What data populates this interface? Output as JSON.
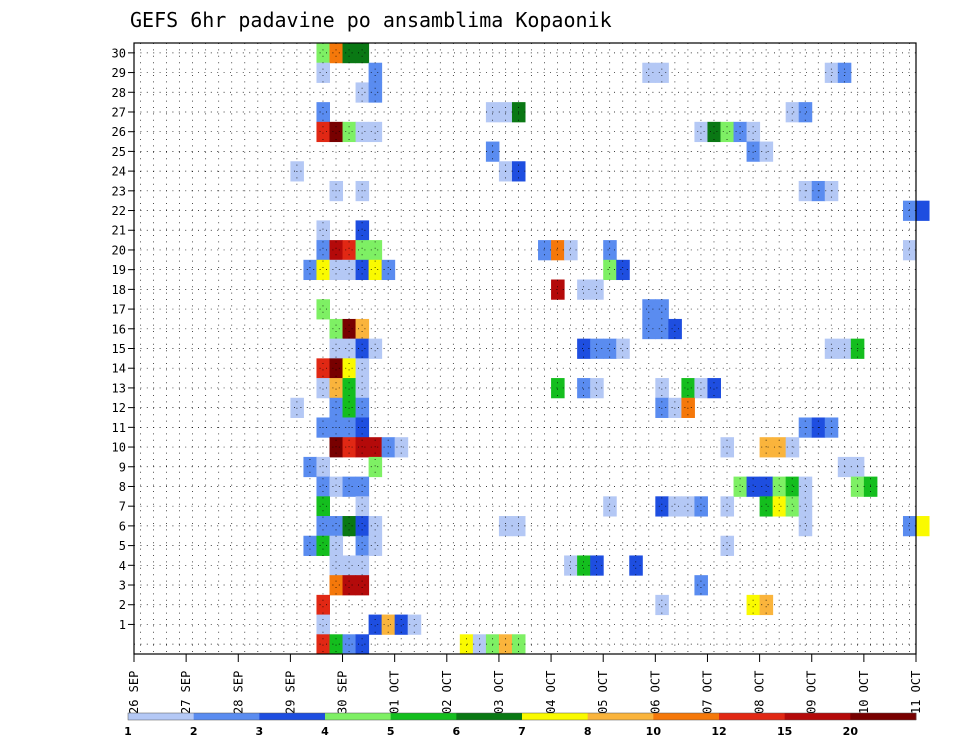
{
  "chart_data": {
    "type": "heatmap",
    "title": "GEFS 6hr padavine po ansamblima Kopaonik",
    "x_tick_labels": [
      "26 SEP",
      "27 SEP",
      "28 SEP",
      "29 SEP",
      "30 SEP",
      "01 OCT",
      "02 OCT",
      "03 OCT",
      "04 OCT",
      "05 OCT",
      "06 OCT",
      "07 OCT",
      "08 OCT",
      "09 OCT",
      "10 OCT",
      "11 OCT"
    ],
    "x_range": [
      "26 SEP 00Z",
      "11 OCT 00Z"
    ],
    "x_step_hours": 6,
    "y_range": [
      0,
      30
    ],
    "y_tick_labels": [
      "1",
      "2",
      "3",
      "4",
      "5",
      "6",
      "7",
      "8",
      "9",
      "10",
      "11",
      "12",
      "13",
      "14",
      "15",
      "16",
      "17",
      "18",
      "19",
      "20",
      "21",
      "22",
      "23",
      "24",
      "25",
      "26",
      "27",
      "28",
      "29",
      "30"
    ],
    "grid": true,
    "colorbar": {
      "position": "bottom",
      "tick_labels": [
        "1",
        "2",
        "3",
        "4",
        "5",
        "6",
        "7",
        "8",
        "10",
        "12",
        "15",
        "20"
      ],
      "colors": [
        "#b4c8f5",
        "#5a8cf0",
        "#1e4ee0",
        "#7ef064",
        "#14be1e",
        "#0a7814",
        "#fafa00",
        "#fab43c",
        "#f5780a",
        "#e12814",
        "#b40a0a",
        "#780000"
      ]
    },
    "cells": [
      {
        "member": 30,
        "step": 14,
        "level": 4
      },
      {
        "member": 30,
        "step": 15,
        "level": 9
      },
      {
        "member": 30,
        "step": 16,
        "level": 6
      },
      {
        "member": 30,
        "step": 17,
        "level": 6
      },
      {
        "member": 29,
        "step": 14,
        "level": 1
      },
      {
        "member": 29,
        "step": 18,
        "level": 2
      },
      {
        "member": 29,
        "step": 39,
        "level": 1
      },
      {
        "member": 29,
        "step": 40,
        "level": 1
      },
      {
        "member": 29,
        "step": 53,
        "level": 1
      },
      {
        "member": 29,
        "step": 54,
        "level": 2
      },
      {
        "member": 28,
        "step": 17,
        "level": 1
      },
      {
        "member": 28,
        "step": 18,
        "level": 2
      },
      {
        "member": 27,
        "step": 14,
        "level": 2
      },
      {
        "member": 27,
        "step": 27,
        "level": 1
      },
      {
        "member": 27,
        "step": 28,
        "level": 1
      },
      {
        "member": 27,
        "step": 29,
        "level": 6
      },
      {
        "member": 27,
        "step": 50,
        "level": 1
      },
      {
        "member": 27,
        "step": 51,
        "level": 2
      },
      {
        "member": 26,
        "step": 14,
        "level": 10
      },
      {
        "member": 26,
        "step": 15,
        "level": 12
      },
      {
        "member": 26,
        "step": 16,
        "level": 4
      },
      {
        "member": 26,
        "step": 17,
        "level": 1
      },
      {
        "member": 26,
        "step": 18,
        "level": 1
      },
      {
        "member": 26,
        "step": 43,
        "level": 1
      },
      {
        "member": 26,
        "step": 44,
        "level": 6
      },
      {
        "member": 26,
        "step": 45,
        "level": 4
      },
      {
        "member": 26,
        "step": 46,
        "level": 2
      },
      {
        "member": 26,
        "step": 47,
        "level": 1
      },
      {
        "member": 25,
        "step": 27,
        "level": 2
      },
      {
        "member": 25,
        "step": 47,
        "level": 2
      },
      {
        "member": 25,
        "step": 48,
        "level": 1
      },
      {
        "member": 24,
        "step": 12,
        "level": 1
      },
      {
        "member": 24,
        "step": 28,
        "level": 1
      },
      {
        "member": 24,
        "step": 29,
        "level": 3
      },
      {
        "member": 23,
        "step": 15,
        "level": 1
      },
      {
        "member": 23,
        "step": 17,
        "level": 1
      },
      {
        "member": 23,
        "step": 51,
        "level": 1
      },
      {
        "member": 23,
        "step": 52,
        "level": 2
      },
      {
        "member": 23,
        "step": 53,
        "level": 1
      },
      {
        "member": 22,
        "step": 59,
        "level": 2
      },
      {
        "member": 22,
        "step": 60,
        "level": 3
      },
      {
        "member": 21,
        "step": 14,
        "level": 1
      },
      {
        "member": 21,
        "step": 17,
        "level": 3
      },
      {
        "member": 20,
        "step": 14,
        "level": 2
      },
      {
        "member": 20,
        "step": 15,
        "level": 11
      },
      {
        "member": 20,
        "step": 16,
        "level": 10
      },
      {
        "member": 20,
        "step": 17,
        "level": 4
      },
      {
        "member": 20,
        "step": 18,
        "level": 4
      },
      {
        "member": 20,
        "step": 31,
        "level": 2
      },
      {
        "member": 20,
        "step": 32,
        "level": 9
      },
      {
        "member": 20,
        "step": 33,
        "level": 1
      },
      {
        "member": 20,
        "step": 36,
        "level": 2
      },
      {
        "member": 20,
        "step": 59,
        "level": 1
      },
      {
        "member": 19,
        "step": 13,
        "level": 2
      },
      {
        "member": 19,
        "step": 14,
        "level": 7
      },
      {
        "member": 19,
        "step": 15,
        "level": 1
      },
      {
        "member": 19,
        "step": 16,
        "level": 1
      },
      {
        "member": 19,
        "step": 17,
        "level": 3
      },
      {
        "member": 19,
        "step": 18,
        "level": 7
      },
      {
        "member": 19,
        "step": 19,
        "level": 2
      },
      {
        "member": 19,
        "step": 36,
        "level": 4
      },
      {
        "member": 19,
        "step": 37,
        "level": 3
      },
      {
        "member": 18,
        "step": 32,
        "level": 11
      },
      {
        "member": 18,
        "step": 34,
        "level": 1
      },
      {
        "member": 18,
        "step": 35,
        "level": 1
      },
      {
        "member": 17,
        "step": 14,
        "level": 4
      },
      {
        "member": 17,
        "step": 39,
        "level": 2
      },
      {
        "member": 17,
        "step": 40,
        "level": 2
      },
      {
        "member": 16,
        "step": 15,
        "level": 4
      },
      {
        "member": 16,
        "step": 16,
        "level": 12
      },
      {
        "member": 16,
        "step": 17,
        "level": 8
      },
      {
        "member": 16,
        "step": 39,
        "level": 2
      },
      {
        "member": 16,
        "step": 40,
        "level": 2
      },
      {
        "member": 16,
        "step": 41,
        "level": 3
      },
      {
        "member": 15,
        "step": 15,
        "level": 1
      },
      {
        "member": 15,
        "step": 16,
        "level": 1
      },
      {
        "member": 15,
        "step": 17,
        "level": 3
      },
      {
        "member": 15,
        "step": 18,
        "level": 1
      },
      {
        "member": 15,
        "step": 34,
        "level": 3
      },
      {
        "member": 15,
        "step": 35,
        "level": 2
      },
      {
        "member": 15,
        "step": 36,
        "level": 2
      },
      {
        "member": 15,
        "step": 37,
        "level": 1
      },
      {
        "member": 15,
        "step": 53,
        "level": 1
      },
      {
        "member": 15,
        "step": 54,
        "level": 1
      },
      {
        "member": 15,
        "step": 55,
        "level": 5
      },
      {
        "member": 14,
        "step": 14,
        "level": 10
      },
      {
        "member": 14,
        "step": 15,
        "level": 12
      },
      {
        "member": 14,
        "step": 16,
        "level": 7
      },
      {
        "member": 14,
        "step": 17,
        "level": 1
      },
      {
        "member": 13,
        "step": 14,
        "level": 1
      },
      {
        "member": 13,
        "step": 15,
        "level": 8
      },
      {
        "member": 13,
        "step": 16,
        "level": 5
      },
      {
        "member": 13,
        "step": 17,
        "level": 1
      },
      {
        "member": 13,
        "step": 32,
        "level": 5
      },
      {
        "member": 13,
        "step": 34,
        "level": 2
      },
      {
        "member": 13,
        "step": 35,
        "level": 1
      },
      {
        "member": 13,
        "step": 40,
        "level": 1
      },
      {
        "member": 13,
        "step": 42,
        "level": 5
      },
      {
        "member": 13,
        "step": 43,
        "level": 1
      },
      {
        "member": 13,
        "step": 44,
        "level": 3
      },
      {
        "member": 12,
        "step": 12,
        "level": 1
      },
      {
        "member": 12,
        "step": 15,
        "level": 2
      },
      {
        "member": 12,
        "step": 16,
        "level": 5
      },
      {
        "member": 12,
        "step": 17,
        "level": 2
      },
      {
        "member": 12,
        "step": 40,
        "level": 2
      },
      {
        "member": 12,
        "step": 41,
        "level": 1
      },
      {
        "member": 12,
        "step": 42,
        "level": 9
      },
      {
        "member": 11,
        "step": 14,
        "level": 2
      },
      {
        "member": 11,
        "step": 15,
        "level": 2
      },
      {
        "member": 11,
        "step": 16,
        "level": 2
      },
      {
        "member": 11,
        "step": 17,
        "level": 3
      },
      {
        "member": 11,
        "step": 51,
        "level": 2
      },
      {
        "member": 11,
        "step": 52,
        "level": 3
      },
      {
        "member": 11,
        "step": 53,
        "level": 2
      },
      {
        "member": 10,
        "step": 15,
        "level": 12
      },
      {
        "member": 10,
        "step": 16,
        "level": 10
      },
      {
        "member": 10,
        "step": 17,
        "level": 11
      },
      {
        "member": 10,
        "step": 18,
        "level": 11
      },
      {
        "member": 10,
        "step": 19,
        "level": 2
      },
      {
        "member": 10,
        "step": 20,
        "level": 1
      },
      {
        "member": 10,
        "step": 45,
        "level": 1
      },
      {
        "member": 10,
        "step": 48,
        "level": 8
      },
      {
        "member": 10,
        "step": 49,
        "level": 8
      },
      {
        "member": 10,
        "step": 50,
        "level": 1
      },
      {
        "member": 9,
        "step": 13,
        "level": 2
      },
      {
        "member": 9,
        "step": 14,
        "level": 1
      },
      {
        "member": 9,
        "step": 18,
        "level": 4
      },
      {
        "member": 9,
        "step": 54,
        "level": 1
      },
      {
        "member": 9,
        "step": 55,
        "level": 1
      },
      {
        "member": 8,
        "step": 14,
        "level": 2
      },
      {
        "member": 8,
        "step": 15,
        "level": 1
      },
      {
        "member": 8,
        "step": 16,
        "level": 2
      },
      {
        "member": 8,
        "step": 17,
        "level": 2
      },
      {
        "member": 8,
        "step": 46,
        "level": 4
      },
      {
        "member": 8,
        "step": 47,
        "level": 3
      },
      {
        "member": 8,
        "step": 48,
        "level": 3
      },
      {
        "member": 8,
        "step": 49,
        "level": 4
      },
      {
        "member": 8,
        "step": 50,
        "level": 5
      },
      {
        "member": 8,
        "step": 51,
        "level": 1
      },
      {
        "member": 8,
        "step": 55,
        "level": 4
      },
      {
        "member": 8,
        "step": 56,
        "level": 5
      },
      {
        "member": 7,
        "step": 14,
        "level": 5
      },
      {
        "member": 7,
        "step": 17,
        "level": 1
      },
      {
        "member": 7,
        "step": 36,
        "level": 1
      },
      {
        "member": 7,
        "step": 40,
        "level": 3
      },
      {
        "member": 7,
        "step": 41,
        "level": 1
      },
      {
        "member": 7,
        "step": 42,
        "level": 1
      },
      {
        "member": 7,
        "step": 43,
        "level": 2
      },
      {
        "member": 7,
        "step": 45,
        "level": 1
      },
      {
        "member": 7,
        "step": 48,
        "level": 5
      },
      {
        "member": 7,
        "step": 49,
        "level": 7
      },
      {
        "member": 7,
        "step": 50,
        "level": 4
      },
      {
        "member": 7,
        "step": 51,
        "level": 1
      },
      {
        "member": 6,
        "step": 14,
        "level": 2
      },
      {
        "member": 6,
        "step": 15,
        "level": 2
      },
      {
        "member": 6,
        "step": 16,
        "level": 6
      },
      {
        "member": 6,
        "step": 17,
        "level": 3
      },
      {
        "member": 6,
        "step": 18,
        "level": 1
      },
      {
        "member": 6,
        "step": 28,
        "level": 1
      },
      {
        "member": 6,
        "step": 29,
        "level": 1
      },
      {
        "member": 6,
        "step": 51,
        "level": 1
      },
      {
        "member": 6,
        "step": 59,
        "level": 2
      },
      {
        "member": 6,
        "step": 60,
        "level": 7
      },
      {
        "member": 5,
        "step": 13,
        "level": 2
      },
      {
        "member": 5,
        "step": 14,
        "level": 5
      },
      {
        "member": 5,
        "step": 15,
        "level": 1
      },
      {
        "member": 5,
        "step": 17,
        "level": 2
      },
      {
        "member": 5,
        "step": 18,
        "level": 1
      },
      {
        "member": 5,
        "step": 45,
        "level": 1
      },
      {
        "member": 4,
        "step": 15,
        "level": 1
      },
      {
        "member": 4,
        "step": 16,
        "level": 1
      },
      {
        "member": 4,
        "step": 17,
        "level": 1
      },
      {
        "member": 4,
        "step": 33,
        "level": 1
      },
      {
        "member": 4,
        "step": 34,
        "level": 5
      },
      {
        "member": 4,
        "step": 35,
        "level": 3
      },
      {
        "member": 4,
        "step": 38,
        "level": 3
      },
      {
        "member": 3,
        "step": 15,
        "level": 9
      },
      {
        "member": 3,
        "step": 16,
        "level": 11
      },
      {
        "member": 3,
        "step": 17,
        "level": 11
      },
      {
        "member": 3,
        "step": 43,
        "level": 2
      },
      {
        "member": 2,
        "step": 14,
        "level": 10
      },
      {
        "member": 2,
        "step": 40,
        "level": 1
      },
      {
        "member": 2,
        "step": 47,
        "level": 7
      },
      {
        "member": 2,
        "step": 48,
        "level": 8
      },
      {
        "member": 1,
        "step": 14,
        "level": 1
      },
      {
        "member": 1,
        "step": 18,
        "level": 3
      },
      {
        "member": 1,
        "step": 19,
        "level": 8
      },
      {
        "member": 1,
        "step": 20,
        "level": 3
      },
      {
        "member": 1,
        "step": 21,
        "level": 1
      },
      {
        "member": 0,
        "step": 14,
        "level": 10
      },
      {
        "member": 0,
        "step": 15,
        "level": 5
      },
      {
        "member": 0,
        "step": 16,
        "level": 2
      },
      {
        "member": 0,
        "step": 17,
        "level": 3
      },
      {
        "member": 0,
        "step": 25,
        "level": 7
      },
      {
        "member": 0,
        "step": 26,
        "level": 1
      },
      {
        "member": 0,
        "step": 27,
        "level": 4
      },
      {
        "member": 0,
        "step": 28,
        "level": 8
      },
      {
        "member": 0,
        "step": 29,
        "level": 4
      }
    ]
  }
}
